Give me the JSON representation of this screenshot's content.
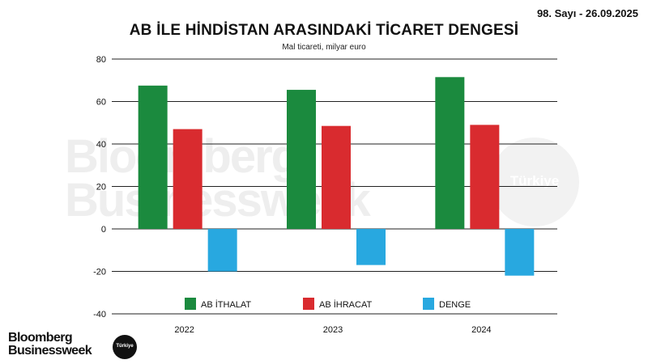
{
  "header": {
    "issue": "98. Sayı - 26.09.2025"
  },
  "chart_data": {
    "type": "bar",
    "title": "AB İLE HİNDİSTAN ARASINDAKİ TİCARET DENGESİ",
    "subtitle": "Mal ticareti, milyar euro",
    "categories": [
      "2022",
      "2023",
      "2024"
    ],
    "series": [
      {
        "name": "AB İTHALAT",
        "color": "#1b8a3e",
        "values": [
          67.5,
          65.5,
          71.5
        ]
      },
      {
        "name": "AB İHRACAT",
        "color": "#d92b2f",
        "values": [
          47,
          48.5,
          49
        ]
      },
      {
        "name": "DENGE",
        "color": "#28a8e0",
        "values": [
          -20,
          -17,
          -22
        ]
      }
    ],
    "ylim": [
      -40,
      80
    ],
    "yticks": [
      "80",
      "60",
      "40",
      "20",
      "0",
      "-20",
      "-40"
    ],
    "grid": true,
    "legend_position": "bottom"
  },
  "watermark": {
    "line1": "Bloomberg",
    "line2": "Businessweek",
    "badge": "Türkiye"
  },
  "logo": {
    "line1": "Bloomberg",
    "line2": "Businessweek",
    "badge": "Türkiye"
  }
}
